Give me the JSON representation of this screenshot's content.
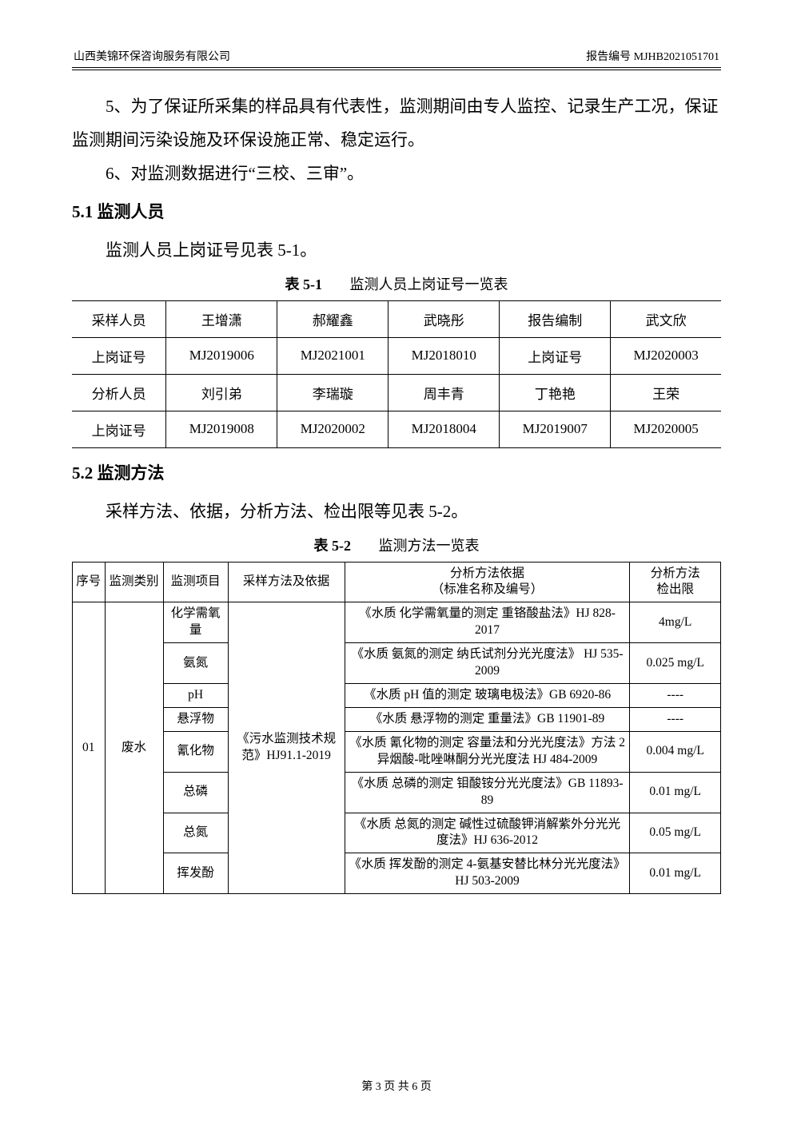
{
  "header": {
    "company": "山西美锦环保咨询服务有限公司",
    "report_no": "报告编号 MJHB2021051701"
  },
  "paragraphs": {
    "p5": "5、为了保证所采集的样品具有代表性，监测期间由专人监控、记录生产工况，保证监测期间污染设施及环保设施正常、稳定运行。",
    "p6": "6、对监测数据进行“三校、三审”。"
  },
  "section51": {
    "title": "5.1 监测人员",
    "line": "监测人员上岗证号见表 5-1。",
    "caption_num": "表 5-1",
    "caption_txt": "监测人员上岗证号一览表"
  },
  "table1": {
    "rows": [
      [
        "采样人员",
        "王增潇",
        "郝耀鑫",
        "武晓彤",
        "报告编制",
        "武文欣"
      ],
      [
        "上岗证号",
        "MJ2019006",
        "MJ2021001",
        "MJ2018010",
        "上岗证号",
        "MJ2020003"
      ],
      [
        "分析人员",
        "刘引弟",
        "李瑞璇",
        "周丰青",
        "丁艳艳",
        "王荣"
      ],
      [
        "上岗证号",
        "MJ2019008",
        "MJ2020002",
        "MJ2018004",
        "MJ2019007",
        "MJ2020005"
      ]
    ]
  },
  "section52": {
    "title": "5.2 监测方法",
    "line": "采样方法、依据，分析方法、检出限等见表 5-2。",
    "caption_num": "表 5-2",
    "caption_txt": "监测方法一览表"
  },
  "table2": {
    "head": {
      "c1": "序号",
      "c2": "监测类别",
      "c3": "监测项目",
      "c4": "采样方法及依据",
      "c5a": "分析方法依据",
      "c5b": "（标准名称及编号）",
      "c6a": "分析方法",
      "c6b": "检出限"
    },
    "spanned": {
      "seq": "01",
      "category": "废水",
      "sampling": "《污水监测技术规范》HJ91.1-2019"
    },
    "rows": [
      {
        "item": "化学需氧量",
        "method": "《水质 化学需氧量的测定 重铬酸盐法》HJ 828-2017",
        "limit": "4mg/L"
      },
      {
        "item": "氨氮",
        "method": "《水质 氨氮的测定 纳氏试剂分光光度法》  HJ 535-2009",
        "limit": "0.025 mg/L"
      },
      {
        "item": "pH",
        "method": "《水质 pH 值的测定 玻璃电极法》GB 6920-86",
        "limit": "----"
      },
      {
        "item": "悬浮物",
        "method": "《水质 悬浮物的测定 重量法》GB 11901-89",
        "limit": "----"
      },
      {
        "item": "氰化物",
        "method": "《水质 氰化物的测定 容量法和分光光度法》方法 2 异烟酸-吡唑啉酮分光光度法 HJ 484-2009",
        "limit": "0.004 mg/L"
      },
      {
        "item": "总磷",
        "method": "《水质 总磷的测定 钼酸铵分光光度法》GB 11893-89",
        "limit": "0.01 mg/L"
      },
      {
        "item": "总氮",
        "method": "《水质 总氮的测定 碱性过硫酸钾消解紫外分光光度法》HJ 636-2012",
        "limit": "0.05 mg/L"
      },
      {
        "item": "挥发酚",
        "method": "《水质 挥发酚的测定 4-氨基安替比林分光光度法》 HJ 503-2009",
        "limit": "0.01 mg/L"
      }
    ],
    "colw": {
      "c1": "5%",
      "c2": "9%",
      "c3": "10%",
      "c4": "18%",
      "c5": "44%",
      "c6": "14%"
    }
  },
  "footer": "第 3 页 共 6 页"
}
